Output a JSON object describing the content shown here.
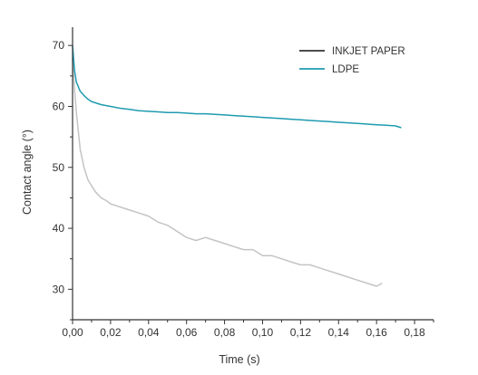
{
  "chart_data": {
    "type": "line",
    "title": "",
    "xlabel": "Time (s)",
    "ylabel": "Contact angle (°)",
    "xlim": [
      0,
      0.19
    ],
    "ylim": [
      25,
      73
    ],
    "x_ticks": [
      0,
      0.02,
      0.04,
      0.06,
      0.08,
      0.1,
      0.12,
      0.14,
      0.16,
      0.18
    ],
    "x_tick_labels": [
      "0,00",
      "0,02",
      "0,04",
      "0,06",
      "0,08",
      "0,10",
      "0,12",
      "0,14",
      "0,16",
      "0,18"
    ],
    "y_ticks": [
      30,
      40,
      50,
      60,
      70
    ],
    "y_tick_labels": [
      "30",
      "40",
      "50",
      "60",
      "70"
    ],
    "grid": false,
    "legend_position": "top-right",
    "legend": [
      {
        "label": "INKJET PAPER",
        "color": "#333333"
      },
      {
        "label": "LDPE",
        "color": "#1f9bb0"
      }
    ],
    "series": [
      {
        "label": "INKJET PAPER",
        "legend_color": "#333333",
        "line_color": "#c4c4c4",
        "x": [
          0,
          0.001,
          0.002,
          0.003,
          0.004,
          0.006,
          0.008,
          0.01,
          0.012,
          0.015,
          0.018,
          0.02,
          0.025,
          0.03,
          0.035,
          0.04,
          0.045,
          0.05,
          0.055,
          0.06,
          0.065,
          0.07,
          0.075,
          0.08,
          0.085,
          0.09,
          0.095,
          0.1,
          0.105,
          0.11,
          0.115,
          0.12,
          0.125,
          0.13,
          0.135,
          0.14,
          0.145,
          0.15,
          0.155,
          0.16,
          0.163
        ],
        "y": [
          68,
          63,
          59,
          56,
          53,
          50,
          48,
          47,
          46,
          45,
          44.5,
          44,
          43.5,
          43,
          42.5,
          42,
          41,
          40.5,
          39.5,
          38.5,
          38,
          38.5,
          38,
          37.5,
          37,
          36.5,
          36.5,
          35.5,
          35.5,
          35,
          34.5,
          34,
          34,
          33.5,
          33,
          32.5,
          32,
          31.5,
          31,
          30.5,
          31
        ]
      },
      {
        "label": "LDPE",
        "legend_color": "#1f9bb0",
        "line_color": "#1f9bb0",
        "x": [
          0,
          0.001,
          0.002,
          0.004,
          0.006,
          0.008,
          0.01,
          0.015,
          0.02,
          0.025,
          0.03,
          0.035,
          0.04,
          0.045,
          0.05,
          0.055,
          0.06,
          0.065,
          0.07,
          0.075,
          0.08,
          0.085,
          0.09,
          0.095,
          0.1,
          0.105,
          0.11,
          0.115,
          0.12,
          0.125,
          0.13,
          0.135,
          0.14,
          0.145,
          0.15,
          0.155,
          0.16,
          0.165,
          0.17,
          0.173
        ],
        "y": [
          70,
          66,
          64,
          62.5,
          61.8,
          61.2,
          60.8,
          60.3,
          60,
          59.7,
          59.5,
          59.3,
          59.2,
          59.1,
          59,
          59,
          58.9,
          58.8,
          58.8,
          58.7,
          58.6,
          58.5,
          58.4,
          58.3,
          58.2,
          58.1,
          58,
          57.9,
          57.8,
          57.7,
          57.6,
          57.5,
          57.4,
          57.3,
          57.2,
          57.1,
          57,
          56.9,
          56.8,
          56.5
        ]
      }
    ]
  }
}
